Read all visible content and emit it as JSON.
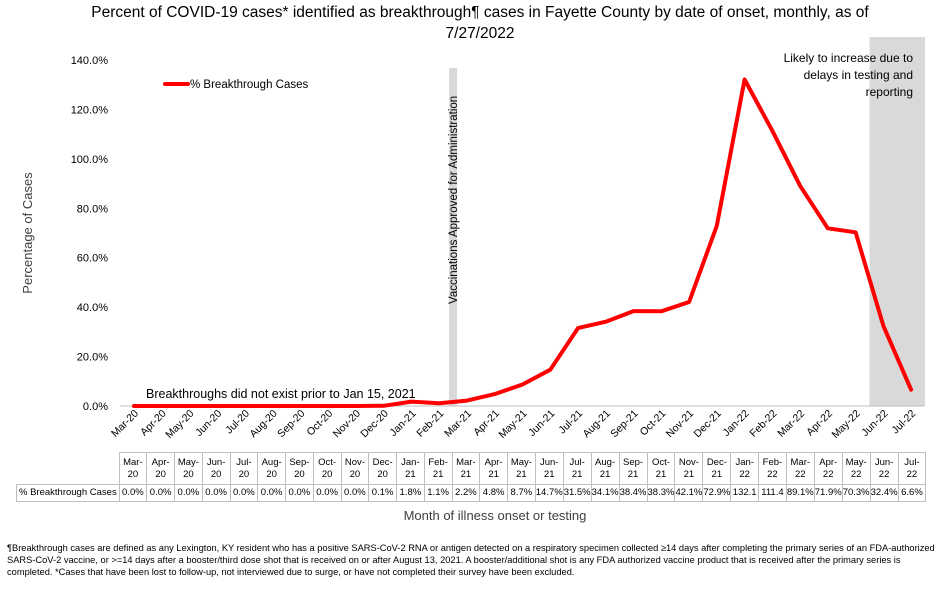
{
  "chart_data": {
    "type": "line",
    "title": "Percent of COVID-19 cases* identified as breakthrough¶ cases in Fayette County by date of onset, monthly, as of 7/27/2022",
    "ylabel": "Percentage of Cases",
    "xlabel": "Month of illness onset or testing",
    "ylim": [
      0,
      140
    ],
    "yticks": [
      "0.0%",
      "20.0%",
      "40.0%",
      "60.0%",
      "80.0%",
      "100.0%",
      "120.0%",
      "140.0%"
    ],
    "categories": [
      "Mar-20",
      "Apr-20",
      "May-20",
      "Jun-20",
      "Jul-20",
      "Aug-20",
      "Sep-20",
      "Oct-20",
      "Nov-20",
      "Dec-20",
      "Jan-21",
      "Feb-21",
      "Mar-21",
      "Apr-21",
      "May-21",
      "Jun-21",
      "Jul-21",
      "Aug-21",
      "Sep-21",
      "Oct-21",
      "Nov-21",
      "Dec-21",
      "Jan-22",
      "Feb-22",
      "Mar-22",
      "Apr-22",
      "May-22",
      "Jun-22",
      "Jul-22"
    ],
    "series": [
      {
        "name": "% Breakthrough Cases",
        "color": "#ff0000",
        "values": [
          0.0,
          0.0,
          0.0,
          0.0,
          0.0,
          0.0,
          0.0,
          0.0,
          0.0,
          0.1,
          1.8,
          1.1,
          2.2,
          4.8,
          8.7,
          14.7,
          31.5,
          34.1,
          38.4,
          38.3,
          42.1,
          72.9,
          132.1,
          111.4,
          89.1,
          71.9,
          70.3,
          32.4,
          6.6
        ],
        "table_labels": [
          "0.0%",
          "0.0%",
          "0.0%",
          "0.0%",
          "0.0%",
          "0.0%",
          "0.0%",
          "0.0%",
          "0.0%",
          "0.1%",
          "1.8%",
          "1.1%",
          "2.2%",
          "4.8%",
          "8.7%",
          "14.7%",
          "31.5%",
          "34.1%",
          "38.4%",
          "38.3%",
          "42.1%",
          "72.9%",
          "132.1",
          "111.4",
          "89.1%",
          "71.9%",
          "70.3%",
          "32.4%",
          "6.6%"
        ]
      }
    ],
    "table_header_labels": [
      [
        "Mar-",
        "20"
      ],
      [
        "Apr-",
        "20"
      ],
      [
        "May-",
        "20"
      ],
      [
        "Jun-",
        "20"
      ],
      [
        "Jul-",
        "20"
      ],
      [
        "Aug-",
        "20"
      ],
      [
        "Sep-",
        "20"
      ],
      [
        "Oct-",
        "20"
      ],
      [
        "Nov-",
        "20"
      ],
      [
        "Dec-",
        "20"
      ],
      [
        "Jan-",
        "21"
      ],
      [
        "Feb-",
        "21"
      ],
      [
        "Mar-",
        "21"
      ],
      [
        "Apr-",
        "21"
      ],
      [
        "May-",
        "21"
      ],
      [
        "Jun-",
        "21"
      ],
      [
        "Jul-",
        "21"
      ],
      [
        "Aug-",
        "21"
      ],
      [
        "Sep-",
        "21"
      ],
      [
        "Oct-",
        "21"
      ],
      [
        "Nov-",
        "21"
      ],
      [
        "Dec-",
        "21"
      ],
      [
        "Jan-",
        "22"
      ],
      [
        "Feb-",
        "22"
      ],
      [
        "Mar-",
        "22"
      ],
      [
        "Apr-",
        "22"
      ],
      [
        "May-",
        "22"
      ],
      [
        "Jun-",
        "22"
      ],
      [
        "Jul-",
        "22"
      ]
    ],
    "legend": {
      "label": "% Breakthrough Cases",
      "position": "top-left"
    },
    "annotations": {
      "vaccination_line": {
        "label": "Vaccinations Approved for Administration",
        "position": "between Feb-21 and Mar-21"
      },
      "no_breakthrough": "Breakthroughs did not exist prior to Jan 15, 2021",
      "shaded_region": {
        "label_lines": [
          "Likely to increase due to",
          "delays in testing and",
          "reporting"
        ],
        "from": "Jun-22",
        "to": "Jul-22",
        "color": "#d9d9d9"
      }
    },
    "grid": false
  },
  "footnote": "¶Breakthrough cases are defined as any Lexington, KY resident who has a positive SARS-CoV-2 RNA or antigen detected on a respiratory specimen collected ≥14 days after completing the primary series of an FDA-authorized SARS-CoV-2 vaccine, or >=14 days after a booster/third dose shot that is received on or after August 13, 2021.  A booster/additional shot is any FDA authorized vaccine product that is received after the primary series is completed.  *Cases that have been lost to follow-up, not interviewed due to surge, or have not completed their survey have been excluded."
}
